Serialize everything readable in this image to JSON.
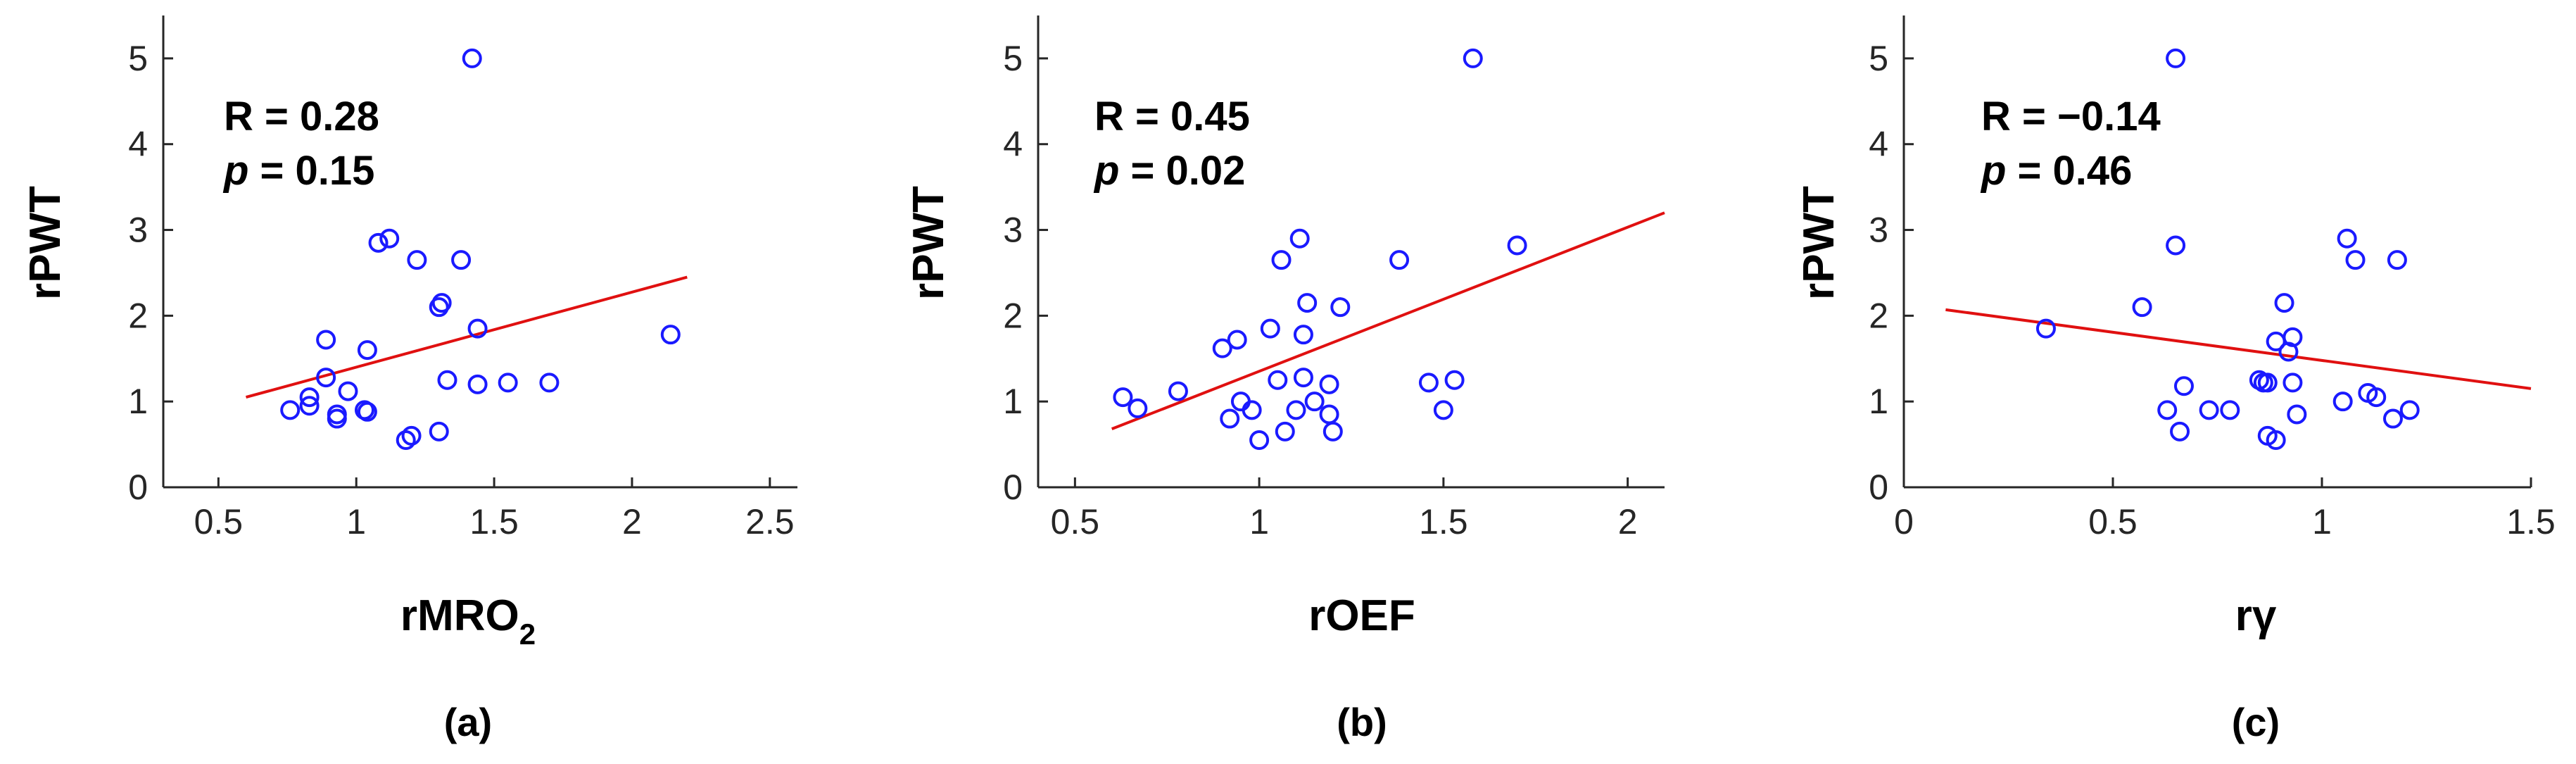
{
  "chart_data": [
    {
      "type": "scatter",
      "panel_label": "(a)",
      "xlabel": "rMRO",
      "xlabel_sub": "2",
      "ylabel": "rPWT",
      "xlim": [
        0.3,
        2.6
      ],
      "ylim": [
        0,
        5.5
      ],
      "xticks": [
        0.5,
        1,
        1.5,
        2,
        2.5
      ],
      "xtick_labels": [
        "0.5",
        "1",
        "1.5",
        "2",
        "2.5"
      ],
      "yticks": [
        0,
        1,
        2,
        3,
        4,
        5
      ],
      "ytick_labels": [
        "0",
        "1",
        "2",
        "3",
        "4",
        "5"
      ],
      "annotation": {
        "r_label": "R = 0.28",
        "p_italic": "p",
        "p_rest": " = 0.15"
      },
      "points": [
        [
          0.76,
          0.9
        ],
        [
          0.83,
          0.95
        ],
        [
          0.83,
          1.05
        ],
        [
          0.89,
          1.28
        ],
        [
          0.89,
          1.72
        ],
        [
          0.93,
          0.8
        ],
        [
          0.93,
          0.85
        ],
        [
          0.97,
          1.12
        ],
        [
          1.03,
          0.9
        ],
        [
          1.04,
          0.88
        ],
        [
          1.04,
          1.6
        ],
        [
          1.08,
          2.85
        ],
        [
          1.12,
          2.9
        ],
        [
          1.18,
          0.55
        ],
        [
          1.2,
          0.6
        ],
        [
          1.22,
          2.65
        ],
        [
          1.3,
          0.65
        ],
        [
          1.3,
          2.1
        ],
        [
          1.31,
          2.15
        ],
        [
          1.33,
          1.25
        ],
        [
          1.38,
          2.65
        ],
        [
          1.42,
          5.0
        ],
        [
          1.44,
          1.2
        ],
        [
          1.44,
          1.85
        ],
        [
          1.55,
          1.22
        ],
        [
          1.7,
          1.22
        ],
        [
          2.14,
          1.78
        ]
      ],
      "fit": {
        "x": [
          0.6,
          2.2
        ],
        "y": [
          1.05,
          2.45
        ]
      }
    },
    {
      "type": "scatter",
      "panel_label": "(b)",
      "xlabel": "rOEF",
      "xlabel_sub": "",
      "ylabel": "rPWT",
      "xlim": [
        0.4,
        2.1
      ],
      "ylim": [
        0,
        5.5
      ],
      "xticks": [
        0.5,
        1,
        1.5,
        2
      ],
      "xtick_labels": [
        "0.5",
        "1",
        "1.5",
        "2"
      ],
      "yticks": [
        0,
        1,
        2,
        3,
        4,
        5
      ],
      "ytick_labels": [
        "0",
        "1",
        "2",
        "3",
        "4",
        "5"
      ],
      "annotation": {
        "r_label": "R = 0.45",
        "p_italic": "p",
        "p_rest": " = 0.02"
      },
      "points": [
        [
          0.63,
          1.05
        ],
        [
          0.67,
          0.92
        ],
        [
          0.78,
          1.12
        ],
        [
          0.9,
          1.62
        ],
        [
          0.92,
          0.8
        ],
        [
          0.94,
          1.72
        ],
        [
          0.95,
          1.0
        ],
        [
          0.98,
          0.9
        ],
        [
          1.0,
          0.55
        ],
        [
          1.03,
          1.85
        ],
        [
          1.05,
          1.25
        ],
        [
          1.06,
          2.65
        ],
        [
          1.07,
          0.65
        ],
        [
          1.1,
          0.9
        ],
        [
          1.11,
          2.9
        ],
        [
          1.12,
          1.28
        ],
        [
          1.12,
          1.78
        ],
        [
          1.13,
          2.15
        ],
        [
          1.15,
          1.0
        ],
        [
          1.19,
          0.85
        ],
        [
          1.19,
          1.2
        ],
        [
          1.2,
          0.65
        ],
        [
          1.22,
          2.1
        ],
        [
          1.38,
          2.65
        ],
        [
          1.46,
          1.22
        ],
        [
          1.5,
          0.9
        ],
        [
          1.53,
          1.25
        ],
        [
          1.58,
          5.0
        ],
        [
          1.7,
          2.82
        ]
      ],
      "fit": {
        "x": [
          0.6,
          2.1
        ],
        "y": [
          0.68,
          3.2
        ]
      }
    },
    {
      "type": "scatter",
      "panel_label": "(c)",
      "xlabel": "rγ",
      "xlabel_sub": "",
      "ylabel": "rPWT",
      "xlim": [
        0,
        1.5
      ],
      "ylim": [
        0,
        5.5
      ],
      "xticks": [
        0,
        0.5,
        1,
        1.5
      ],
      "xtick_labels": [
        "0",
        "0.5",
        "1",
        "1.5"
      ],
      "yticks": [
        0,
        1,
        2,
        3,
        4,
        5
      ],
      "ytick_labels": [
        "0",
        "1",
        "2",
        "3",
        "4",
        "5"
      ],
      "annotation": {
        "r_label": "R = −0.14",
        "p_italic": "p",
        "p_rest": " = 0.46"
      },
      "points": [
        [
          0.34,
          1.85
        ],
        [
          0.57,
          2.1
        ],
        [
          0.63,
          0.9
        ],
        [
          0.65,
          2.82
        ],
        [
          0.65,
          5.0
        ],
        [
          0.66,
          0.65
        ],
        [
          0.67,
          1.18
        ],
        [
          0.73,
          0.9
        ],
        [
          0.78,
          0.9
        ],
        [
          0.85,
          1.25
        ],
        [
          0.86,
          1.22
        ],
        [
          0.87,
          0.6
        ],
        [
          0.87,
          1.22
        ],
        [
          0.89,
          0.55
        ],
        [
          0.89,
          1.7
        ],
        [
          0.91,
          2.15
        ],
        [
          0.92,
          1.58
        ],
        [
          0.93,
          1.22
        ],
        [
          0.93,
          1.75
        ],
        [
          0.94,
          0.85
        ],
        [
          1.05,
          1.0
        ],
        [
          1.06,
          2.9
        ],
        [
          1.08,
          2.65
        ],
        [
          1.11,
          1.1
        ],
        [
          1.13,
          1.05
        ],
        [
          1.17,
          0.8
        ],
        [
          1.18,
          2.65
        ],
        [
          1.21,
          0.9
        ]
      ],
      "fit": {
        "x": [
          0.1,
          1.5
        ],
        "y": [
          2.07,
          1.15
        ]
      }
    }
  ]
}
